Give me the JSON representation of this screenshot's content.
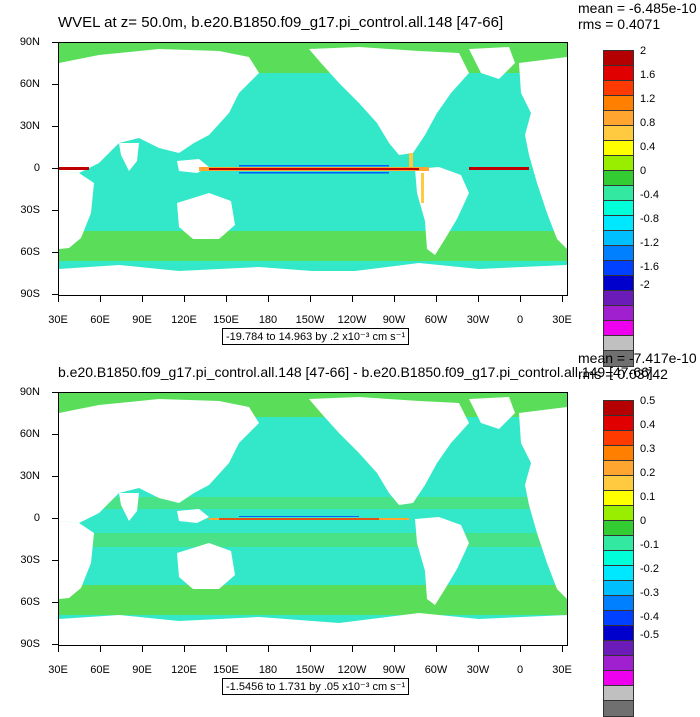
{
  "panel1": {
    "title": "WVEL at z=  50.0m, b.e20.B1850.f09_g17.pi_control.all.148 [47-66]",
    "mean": "mean = -6.485e-10",
    "rms": "rms = 0.4071",
    "range": "-19.784 to 14.963 by .2 x10⁻³ cm s⁻¹",
    "colorbar_labels": [
      "2",
      "1.6",
      "1.2",
      "0.8",
      "0.4",
      "0",
      "-0.4",
      "-0.8",
      "-1.2",
      "-1.6",
      "-2"
    ],
    "colorbar_colors": [
      "#b40000",
      "#e10000",
      "#ff3a00",
      "#ff7f00",
      "#ffa530",
      "#ffca40",
      "#ffff00",
      "#99ee00",
      "#33cc33",
      "#33e8a0",
      "#00ffd8",
      "#00e8ff",
      "#00bfff",
      "#0080ff",
      "#0040ff",
      "#0000cc",
      "#6a1bb8",
      "#a020d0",
      "#ee00ee",
      "#c0c0c0",
      "#707070"
    ]
  },
  "panel2": {
    "title": "b.e20.B1850.f09_g17.pi_control.all.148 [47-66] - b.e20.B1850.f09_g17.pi_control.all.149 [47-66]",
    "mean": "mean = -7.417e-10",
    "rms": "rms = 0.03742",
    "range": "-1.5456 to 1.731 by .05 x10⁻³ cm s⁻¹",
    "colorbar_labels": [
      "0.5",
      "0.4",
      "0.3",
      "0.2",
      "0.1",
      "0",
      "-0.1",
      "-0.2",
      "-0.3",
      "-0.4",
      "-0.5"
    ],
    "colorbar_colors": [
      "#b40000",
      "#e10000",
      "#ff3a00",
      "#ff7f00",
      "#ffa530",
      "#ffca40",
      "#ffff00",
      "#99ee00",
      "#33cc33",
      "#33e8a0",
      "#00ffd8",
      "#00e8ff",
      "#00bfff",
      "#0080ff",
      "#0040ff",
      "#0000cc",
      "#6a1bb8",
      "#a020d0",
      "#ee00ee",
      "#c0c0c0",
      "#707070"
    ]
  },
  "axes": {
    "lat_labels": [
      "90N",
      "60N",
      "30N",
      "0",
      "30S",
      "60S",
      "90S"
    ],
    "lon_labels": [
      "30E",
      "60E",
      "90E",
      "120E",
      "150E",
      "180",
      "150W",
      "120W",
      "90W",
      "60W",
      "30W",
      "0",
      "30E"
    ]
  },
  "colors": {
    "ocean": "#33e8c8",
    "ocean_band": "#5ade5a",
    "land": "#ffffff",
    "equator_red": "#c00000",
    "equator_blue": "#0060ff"
  },
  "map_data": {
    "projection": "cylindrical equidistant",
    "lon_range": [
      30,
      390
    ],
    "lat_range": [
      -90,
      90
    ]
  }
}
